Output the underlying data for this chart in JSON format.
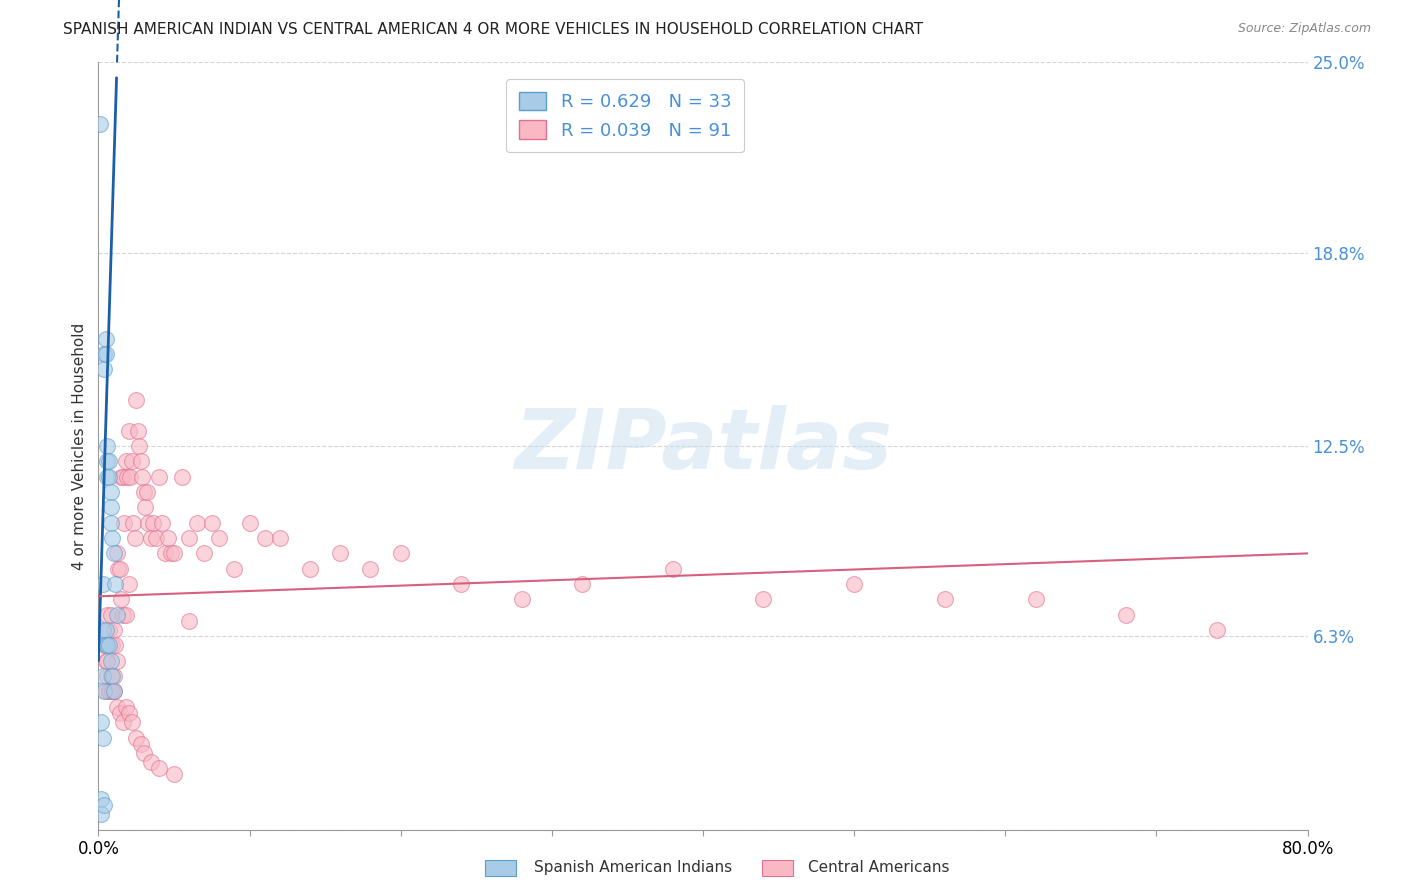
{
  "title": "SPANISH AMERICAN INDIAN VS CENTRAL AMERICAN 4 OR MORE VEHICLES IN HOUSEHOLD CORRELATION CHART",
  "source": "Source: ZipAtlas.com",
  "ylabel": "4 or more Vehicles in Household",
  "watermark": "ZIPatlas",
  "xlim": [
    0.0,
    0.8
  ],
  "ylim": [
    0.0,
    0.25
  ],
  "yticks": [
    0.0,
    0.063,
    0.125,
    0.188,
    0.25
  ],
  "ytick_labels": [
    "",
    "6.3%",
    "12.5%",
    "18.8%",
    "25.0%"
  ],
  "legend_r1": "R = 0.629",
  "legend_n1": "N = 33",
  "legend_r2": "R = 0.039",
  "legend_n2": "N = 91",
  "blue_fill": "#a8cce8",
  "blue_edge": "#5b9ec9",
  "pink_fill": "#f9b8c4",
  "pink_edge": "#e07090",
  "line_blue": "#1a5fa8",
  "line_pink": "#d95f7f",
  "blue_scatter_x": [
    0.001,
    0.002,
    0.002,
    0.003,
    0.003,
    0.003,
    0.004,
    0.004,
    0.004,
    0.005,
    0.005,
    0.005,
    0.005,
    0.006,
    0.006,
    0.006,
    0.006,
    0.007,
    0.007,
    0.007,
    0.008,
    0.008,
    0.008,
    0.008,
    0.009,
    0.009,
    0.01,
    0.01,
    0.011,
    0.012,
    0.002,
    0.003,
    0.004
  ],
  "blue_scatter_y": [
    0.23,
    0.01,
    0.005,
    0.08,
    0.065,
    0.05,
    0.155,
    0.15,
    0.045,
    0.16,
    0.155,
    0.065,
    0.06,
    0.125,
    0.12,
    0.115,
    0.06,
    0.12,
    0.115,
    0.06,
    0.11,
    0.105,
    0.1,
    0.055,
    0.095,
    0.05,
    0.09,
    0.045,
    0.08,
    0.07,
    0.035,
    0.03,
    0.008
  ],
  "pink_scatter_x": [
    0.004,
    0.005,
    0.006,
    0.006,
    0.007,
    0.007,
    0.008,
    0.008,
    0.009,
    0.01,
    0.01,
    0.011,
    0.012,
    0.012,
    0.013,
    0.014,
    0.015,
    0.015,
    0.016,
    0.016,
    0.017,
    0.018,
    0.018,
    0.019,
    0.02,
    0.02,
    0.021,
    0.022,
    0.023,
    0.024,
    0.025,
    0.026,
    0.027,
    0.028,
    0.029,
    0.03,
    0.031,
    0.032,
    0.033,
    0.035,
    0.036,
    0.038,
    0.04,
    0.042,
    0.044,
    0.046,
    0.048,
    0.05,
    0.055,
    0.06,
    0.065,
    0.07,
    0.075,
    0.08,
    0.09,
    0.1,
    0.11,
    0.12,
    0.14,
    0.16,
    0.18,
    0.2,
    0.24,
    0.28,
    0.32,
    0.38,
    0.44,
    0.5,
    0.56,
    0.62,
    0.68,
    0.74,
    0.005,
    0.006,
    0.007,
    0.008,
    0.009,
    0.01,
    0.012,
    0.014,
    0.016,
    0.018,
    0.02,
    0.022,
    0.025,
    0.028,
    0.03,
    0.035,
    0.04,
    0.05,
    0.06
  ],
  "pink_scatter_y": [
    0.06,
    0.055,
    0.07,
    0.05,
    0.065,
    0.045,
    0.07,
    0.045,
    0.06,
    0.065,
    0.045,
    0.06,
    0.09,
    0.055,
    0.085,
    0.085,
    0.115,
    0.075,
    0.115,
    0.07,
    0.1,
    0.12,
    0.07,
    0.115,
    0.13,
    0.08,
    0.115,
    0.12,
    0.1,
    0.095,
    0.14,
    0.13,
    0.125,
    0.12,
    0.115,
    0.11,
    0.105,
    0.11,
    0.1,
    0.095,
    0.1,
    0.095,
    0.115,
    0.1,
    0.09,
    0.095,
    0.09,
    0.09,
    0.115,
    0.095,
    0.1,
    0.09,
    0.1,
    0.095,
    0.085,
    0.1,
    0.095,
    0.095,
    0.085,
    0.09,
    0.085,
    0.09,
    0.08,
    0.075,
    0.08,
    0.085,
    0.075,
    0.08,
    0.075,
    0.075,
    0.07,
    0.065,
    0.045,
    0.055,
    0.045,
    0.05,
    0.045,
    0.05,
    0.04,
    0.038,
    0.035,
    0.04,
    0.038,
    0.035,
    0.03,
    0.028,
    0.025,
    0.022,
    0.02,
    0.018,
    0.068
  ],
  "blue_line_x": [
    0.0,
    0.012
  ],
  "blue_line_y_start": 0.055,
  "blue_line_y_end": 0.245,
  "pink_line_x": [
    0.0,
    0.8
  ],
  "pink_line_y_start": 0.076,
  "pink_line_y_end": 0.09
}
